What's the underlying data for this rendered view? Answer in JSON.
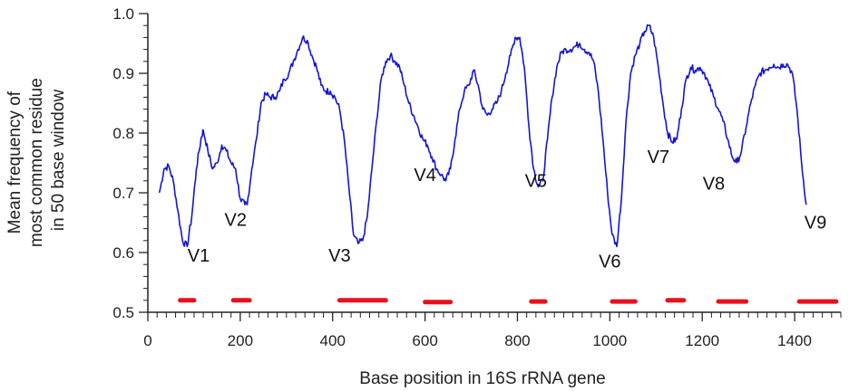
{
  "chart_data": {
    "type": "line",
    "xlabel": "Base position in 16S rRNA gene",
    "ylabel_lines": [
      "Mean frequency of",
      "most common residue",
      "in 50 base window"
    ],
    "xlim": [
      0,
      1500
    ],
    "ylim": [
      0.5,
      1.0
    ],
    "x_ticks": [
      0,
      200,
      400,
      600,
      800,
      1000,
      1200,
      1400
    ],
    "y_ticks": [
      "0.5",
      "0.6",
      "0.7",
      "0.8",
      "0.9",
      "1.0"
    ],
    "grid": false,
    "colors": {
      "line": "#1414d8",
      "segments": "#e8101a",
      "axis": "#222222"
    },
    "series": [
      {
        "x": [
          25,
          35,
          45,
          55,
          65,
          75,
          85,
          95,
          105,
          115,
          120,
          130,
          140,
          150,
          160,
          170,
          180,
          190,
          200,
          210,
          215,
          225,
          235,
          245,
          255,
          265,
          275,
          285,
          295,
          305,
          315,
          325,
          335,
          345,
          355,
          365,
          375,
          385,
          395,
          405,
          415,
          425,
          435,
          445,
          455,
          465,
          475,
          485,
          495,
          505,
          515,
          525,
          535,
          545,
          555,
          565,
          575,
          585,
          595,
          605,
          615,
          625,
          635,
          645,
          655,
          665,
          675,
          685,
          695,
          705,
          715,
          725,
          735,
          745,
          755,
          765,
          775,
          785,
          795,
          805,
          815,
          825,
          835,
          845,
          855,
          865,
          875,
          885,
          895,
          905,
          915,
          925,
          935,
          945,
          955,
          965,
          975,
          985,
          995,
          1005,
          1015,
          1025,
          1035,
          1045,
          1055,
          1065,
          1075,
          1085,
          1095,
          1105,
          1115,
          1125,
          1135,
          1145,
          1155,
          1165,
          1175,
          1185,
          1195,
          1205,
          1215,
          1225,
          1235,
          1245,
          1255,
          1265,
          1275,
          1285,
          1295,
          1305,
          1315,
          1325,
          1335,
          1345,
          1355,
          1365,
          1375,
          1385,
          1395,
          1405,
          1415,
          1425
        ],
        "y": [
          0.7,
          0.74,
          0.745,
          0.72,
          0.67,
          0.62,
          0.61,
          0.66,
          0.74,
          0.79,
          0.805,
          0.77,
          0.74,
          0.75,
          0.78,
          0.77,
          0.75,
          0.74,
          0.69,
          0.68,
          0.68,
          0.74,
          0.79,
          0.85,
          0.865,
          0.86,
          0.86,
          0.87,
          0.89,
          0.9,
          0.92,
          0.94,
          0.96,
          0.955,
          0.93,
          0.91,
          0.88,
          0.87,
          0.87,
          0.86,
          0.84,
          0.79,
          0.71,
          0.63,
          0.615,
          0.62,
          0.66,
          0.74,
          0.82,
          0.89,
          0.92,
          0.93,
          0.92,
          0.91,
          0.88,
          0.85,
          0.83,
          0.81,
          0.79,
          0.78,
          0.76,
          0.74,
          0.73,
          0.72,
          0.74,
          0.79,
          0.84,
          0.87,
          0.88,
          0.905,
          0.88,
          0.84,
          0.83,
          0.84,
          0.85,
          0.87,
          0.9,
          0.93,
          0.96,
          0.96,
          0.91,
          0.81,
          0.74,
          0.71,
          0.72,
          0.79,
          0.86,
          0.91,
          0.935,
          0.94,
          0.94,
          0.945,
          0.95,
          0.94,
          0.935,
          0.92,
          0.87,
          0.79,
          0.7,
          0.63,
          0.61,
          0.69,
          0.82,
          0.9,
          0.93,
          0.95,
          0.97,
          0.98,
          0.96,
          0.91,
          0.85,
          0.8,
          0.785,
          0.79,
          0.84,
          0.89,
          0.91,
          0.905,
          0.91,
          0.9,
          0.88,
          0.86,
          0.84,
          0.82,
          0.79,
          0.76,
          0.75,
          0.77,
          0.81,
          0.85,
          0.88,
          0.9,
          0.905,
          0.91,
          0.915,
          0.91,
          0.915,
          0.915,
          0.9,
          0.84,
          0.75,
          0.68
        ]
      }
    ],
    "segments": [
      {
        "x": [
          70,
          100
        ],
        "y": 0.52
      },
      {
        "x": [
          185,
          220
        ],
        "y": 0.52
      },
      {
        "x": [
          415,
          515
        ],
        "y": 0.52
      },
      {
        "x": [
          600,
          655
        ],
        "y": 0.517
      },
      {
        "x": [
          830,
          860
        ],
        "y": 0.518
      },
      {
        "x": [
          1005,
          1055
        ],
        "y": 0.518
      },
      {
        "x": [
          1125,
          1160
        ],
        "y": 0.52
      },
      {
        "x": [
          1235,
          1295
        ],
        "y": 0.518
      },
      {
        "x": [
          1410,
          1490
        ],
        "y": 0.518
      }
    ],
    "annotations": [
      {
        "text": "V1",
        "x": 110,
        "y": 0.585
      },
      {
        "text": "V2",
        "x": 190,
        "y": 0.645
      },
      {
        "text": "V3",
        "x": 415,
        "y": 0.585
      },
      {
        "text": "V4",
        "x": 600,
        "y": 0.72
      },
      {
        "text": "V5",
        "x": 840,
        "y": 0.71
      },
      {
        "text": "V6",
        "x": 1000,
        "y": 0.575
      },
      {
        "text": "V7",
        "x": 1105,
        "y": 0.75
      },
      {
        "text": "V8",
        "x": 1225,
        "y": 0.705
      },
      {
        "text": "V9",
        "x": 1445,
        "y": 0.64
      }
    ]
  }
}
